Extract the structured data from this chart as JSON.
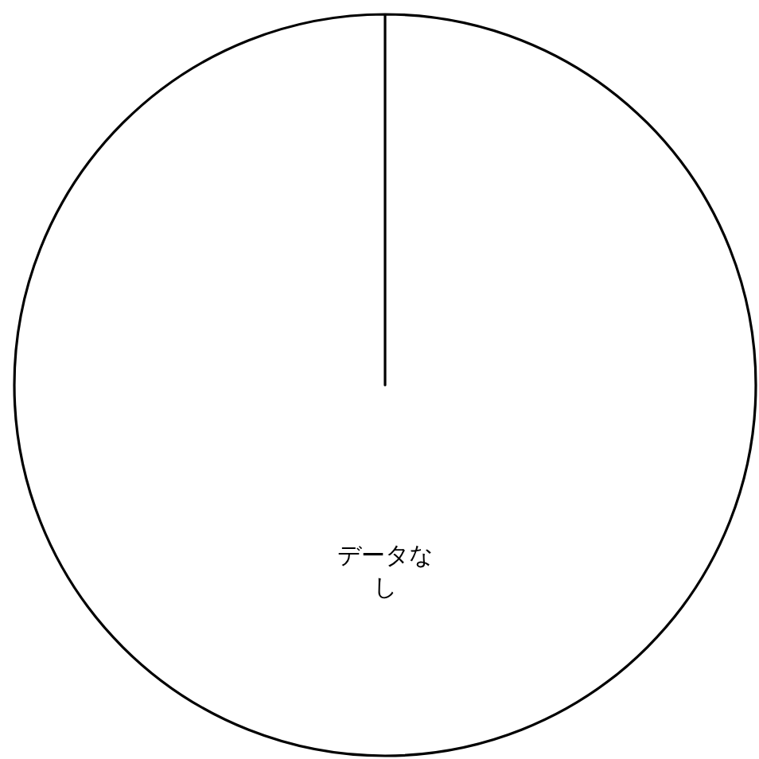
{
  "chart_data": {
    "type": "pie",
    "categories": [
      "データなし"
    ],
    "values": [
      100
    ],
    "colors": [
      "#ffffff"
    ]
  }
}
